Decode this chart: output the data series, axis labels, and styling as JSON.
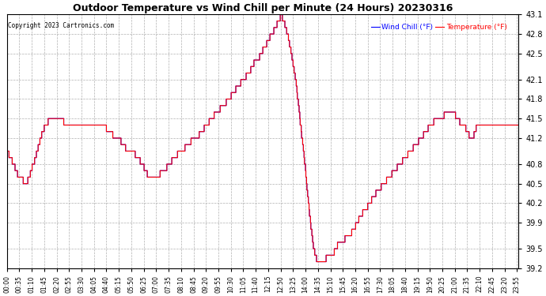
{
  "title": "Outdoor Temperature vs Wind Chill per Minute (24 Hours) 20230316",
  "copyright": "Copyright 2023 Cartronics.com",
  "legend_wind_chill": "Wind Chill (°F)",
  "legend_temperature": "Temperature (°F)",
  "wind_chill_color": "blue",
  "temperature_color": "red",
  "background_color": "#ffffff",
  "grid_color": "#b0b0b0",
  "ylim_min": 39.2,
  "ylim_max": 43.1,
  "yticks": [
    39.2,
    39.5,
    39.9,
    40.2,
    40.5,
    40.8,
    41.2,
    41.5,
    41.8,
    42.1,
    42.5,
    42.8,
    43.1
  ],
  "xtick_labels": [
    "00:00",
    "00:35",
    "01:10",
    "01:45",
    "02:20",
    "02:55",
    "03:30",
    "04:05",
    "04:40",
    "05:15",
    "05:50",
    "06:25",
    "07:00",
    "07:35",
    "08:10",
    "08:45",
    "09:20",
    "09:55",
    "10:30",
    "11:05",
    "11:40",
    "12:15",
    "12:50",
    "13:25",
    "14:00",
    "14:35",
    "15:10",
    "15:45",
    "16:20",
    "16:55",
    "17:30",
    "18:05",
    "18:40",
    "19:15",
    "19:50",
    "20:25",
    "21:00",
    "21:35",
    "22:10",
    "22:45",
    "23:20",
    "23:55"
  ]
}
